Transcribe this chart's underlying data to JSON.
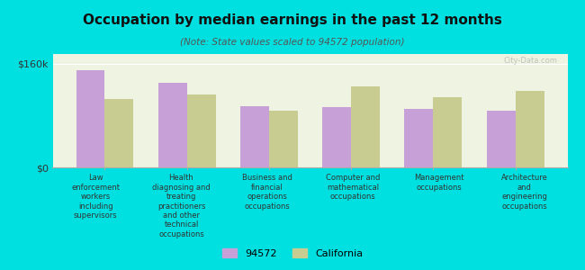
{
  "title": "Occupation by median earnings in the past 12 months",
  "subtitle": "(Note: State values scaled to 94572 population)",
  "categories": [
    "Law\nenforcement\nworkers\nincluding\nsupervisors",
    "Health\ndiagnosing and\ntreating\npractitioners\nand other\ntechnical\noccupations",
    "Business and\nfinancial\noperations\noccupations",
    "Computer and\nmathematical\noccupations",
    "Management\noccupations",
    "Architecture\nand\nengineering\noccupations"
  ],
  "values_94572": [
    150000,
    130000,
    95000,
    93000,
    90000,
    88000
  ],
  "values_california": [
    105000,
    112000,
    88000,
    125000,
    108000,
    118000
  ],
  "color_94572": "#c8a0d8",
  "color_california": "#c8cc90",
  "background_plot": "#eef3e2",
  "background_fig": "#00e0e0",
  "ylim": [
    0,
    175000
  ],
  "yticks": [
    0,
    160000
  ],
  "ytick_labels": [
    "$0",
    "$160k"
  ],
  "legend_label_94572": "94572",
  "legend_label_california": "California",
  "watermark": "City-Data.com"
}
